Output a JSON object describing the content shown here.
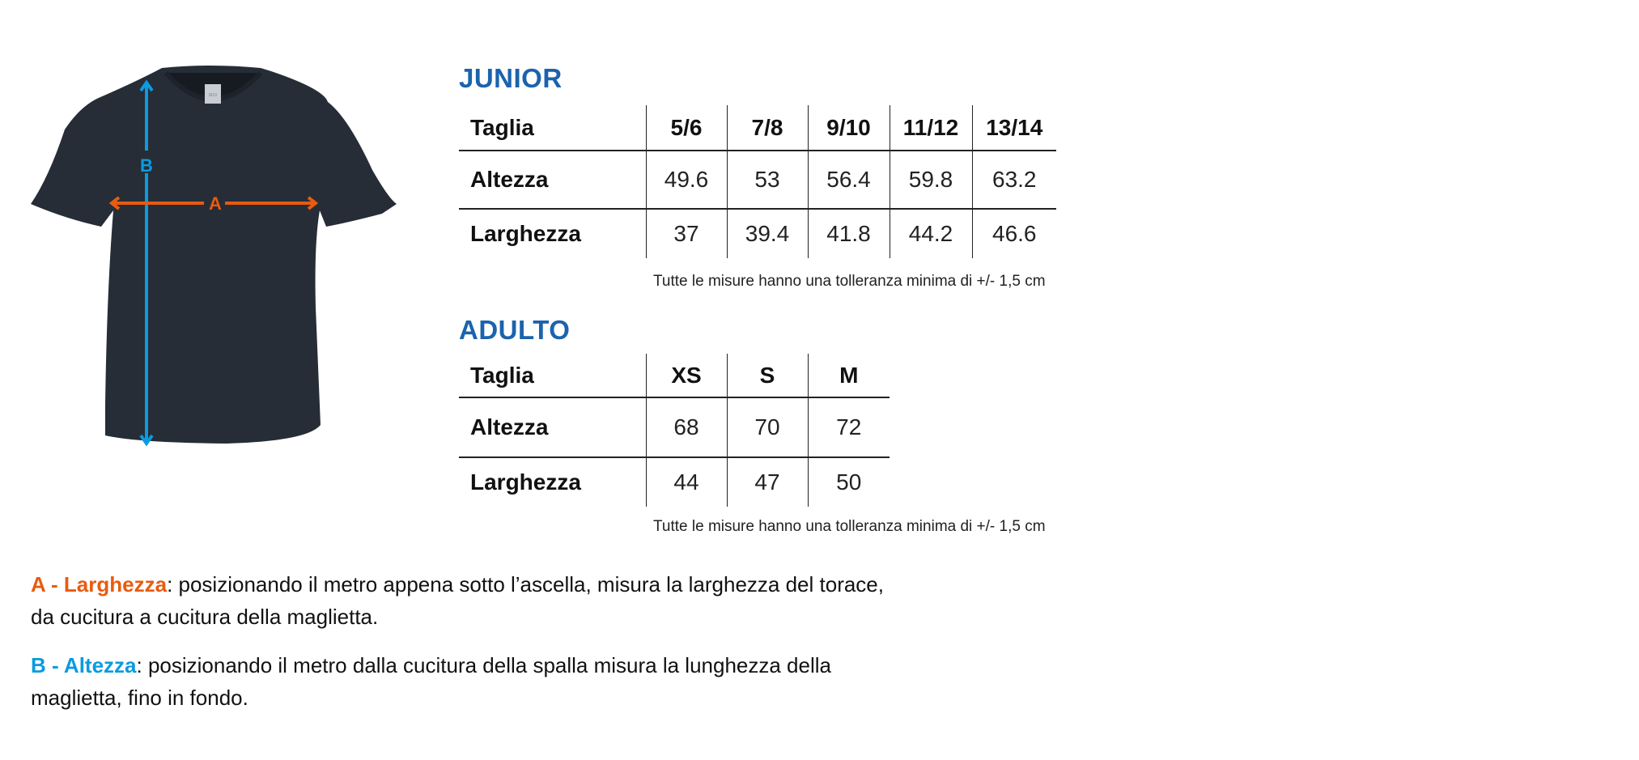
{
  "colors": {
    "title_blue": "#1b63ad",
    "measure_a": "#e85b10",
    "measure_b": "#0a9be0",
    "shirt": "#262d36"
  },
  "diagram": {
    "label_a": "A",
    "label_b": "B",
    "tag_text": "8/10"
  },
  "junior": {
    "title": "JUNIOR",
    "header": [
      "Taglia",
      "5/6",
      "7/8",
      "9/10",
      "11/12",
      "13/14"
    ],
    "rows": [
      [
        "Altezza",
        "49.6",
        "53",
        "56.4",
        "59.8",
        "63.2"
      ],
      [
        "Larghezza",
        "37",
        "39.4",
        "41.8",
        "44.2",
        "46.6"
      ]
    ],
    "note": "Tutte le misure hanno una tolleranza minima di +/- 1,5 cm"
  },
  "adulto": {
    "title": "ADULTO",
    "header": [
      "Taglia",
      "XS",
      "S",
      "M"
    ],
    "rows": [
      [
        "Altezza",
        "68",
        "70",
        "72"
      ],
      [
        "Larghezza",
        "44",
        "47",
        "50"
      ]
    ],
    "note": "Tutte le misure hanno una tolleranza minima di +/- 1,5 cm"
  },
  "descriptions": {
    "a_label": "A - Larghezza",
    "a_line1": ": posizionando il metro appena sotto l’ascella, misura la larghezza del torace,",
    "a_line2": "da cucitura a cucitura della maglietta.",
    "b_label": "B - Altezza",
    "b_line1": ": posizionando il metro dalla cucitura della spalla misura la lunghezza della",
    "b_line2": "maglietta, fino in fondo."
  }
}
